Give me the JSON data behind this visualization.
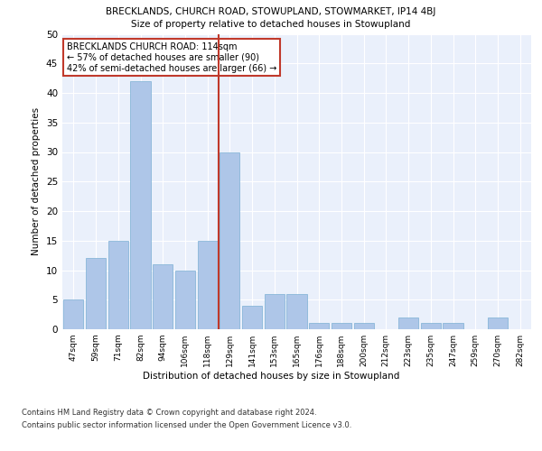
{
  "title_line1": "BRECKLANDS, CHURCH ROAD, STOWUPLAND, STOWMARKET, IP14 4BJ",
  "title_line2": "Size of property relative to detached houses in Stowupland",
  "xlabel": "Distribution of detached houses by size in Stowupland",
  "ylabel": "Number of detached properties",
  "categories": [
    "47sqm",
    "59sqm",
    "71sqm",
    "82sqm",
    "94sqm",
    "106sqm",
    "118sqm",
    "129sqm",
    "141sqm",
    "153sqm",
    "165sqm",
    "176sqm",
    "188sqm",
    "200sqm",
    "212sqm",
    "223sqm",
    "235sqm",
    "247sqm",
    "259sqm",
    "270sqm",
    "282sqm"
  ],
  "values": [
    5,
    12,
    15,
    42,
    11,
    10,
    15,
    30,
    4,
    6,
    6,
    1,
    1,
    1,
    0,
    2,
    1,
    1,
    0,
    2,
    0
  ],
  "bar_color": "#aec6e8",
  "bar_edge_color": "#7bafd4",
  "reference_line_x": 6.5,
  "reference_line_color": "#c0392b",
  "annotation_text": "BRECKLANDS CHURCH ROAD: 114sqm\n← 57% of detached houses are smaller (90)\n42% of semi-detached houses are larger (66) →",
  "annotation_box_color": "#c0392b",
  "ylim": [
    0,
    50
  ],
  "yticks": [
    0,
    5,
    10,
    15,
    20,
    25,
    30,
    35,
    40,
    45,
    50
  ],
  "footer_line1": "Contains HM Land Registry data © Crown copyright and database right 2024.",
  "footer_line2": "Contains public sector information licensed under the Open Government Licence v3.0.",
  "bg_color": "#eaf0fb",
  "grid_color": "#ffffff"
}
